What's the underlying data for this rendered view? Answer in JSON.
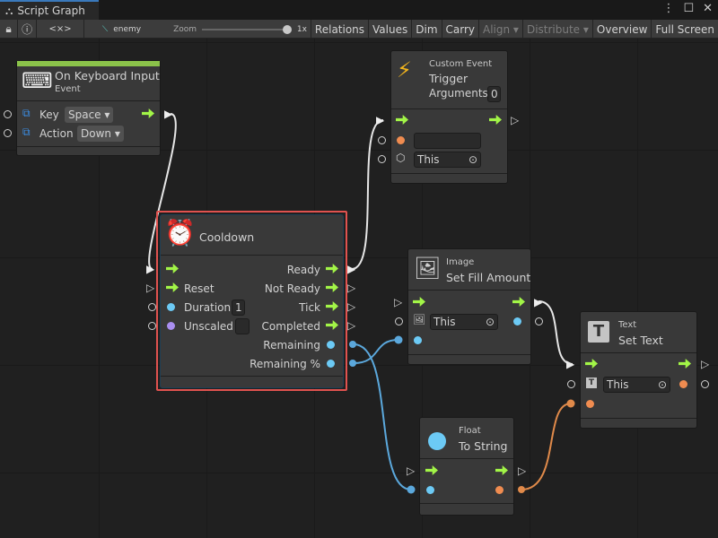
{
  "window": {
    "tab_title": "Script Graph",
    "menu_icon": "kebab-icon",
    "maximize_icon": "maximize-icon",
    "close_icon": "close-icon"
  },
  "toolbar": {
    "lock_icon": "lock-icon",
    "info_icon": "info-icon",
    "code_icon": "<×>",
    "object": "enemy",
    "zoom_label": "Zoom",
    "zoom_value": "1x",
    "zoom_level": 1,
    "buttons": [
      "Relations",
      "Values",
      "Dim",
      "Carry",
      "Align ▾",
      "Distribute ▾",
      "Overview",
      "Full Screen"
    ]
  },
  "nodes": {
    "keyboard": {
      "title": "On Keyboard Input",
      "subtitle": "Event",
      "key_label": "Key",
      "key_value": "Space ▾",
      "action_label": "Action",
      "action_value": "Down ▾",
      "accent": "#8bc34a"
    },
    "custom_event": {
      "category": "Custom Event",
      "title": "Trigger",
      "args_label": "Arguments",
      "args_value": "0",
      "name_value": "",
      "target_value": "This"
    },
    "cooldown": {
      "title": "Cooldown",
      "reset": "Reset",
      "duration": "Duration",
      "duration_value": "1",
      "unscaled": "Unscaled",
      "ready": "Ready",
      "not_ready": "Not Ready",
      "tick": "Tick",
      "completed": "Completed",
      "remaining": "Remaining",
      "remaining_pct": "Remaining %",
      "selected_outline": "#e0524f"
    },
    "set_fill": {
      "category": "Image",
      "title": "Set Fill Amount",
      "target_value": "This"
    },
    "set_text": {
      "category": "Text",
      "title": "Set Text",
      "target_value": "This"
    },
    "to_string": {
      "category": "Float",
      "title": "To String"
    }
  },
  "colors": {
    "flow": "#a2f547",
    "float_port": "#6ccaf5",
    "string_port": "#f08c50",
    "bool_port": "#a98ef0",
    "wire_blue": "#5ba8dc",
    "wire_orange": "#e08a4a"
  }
}
